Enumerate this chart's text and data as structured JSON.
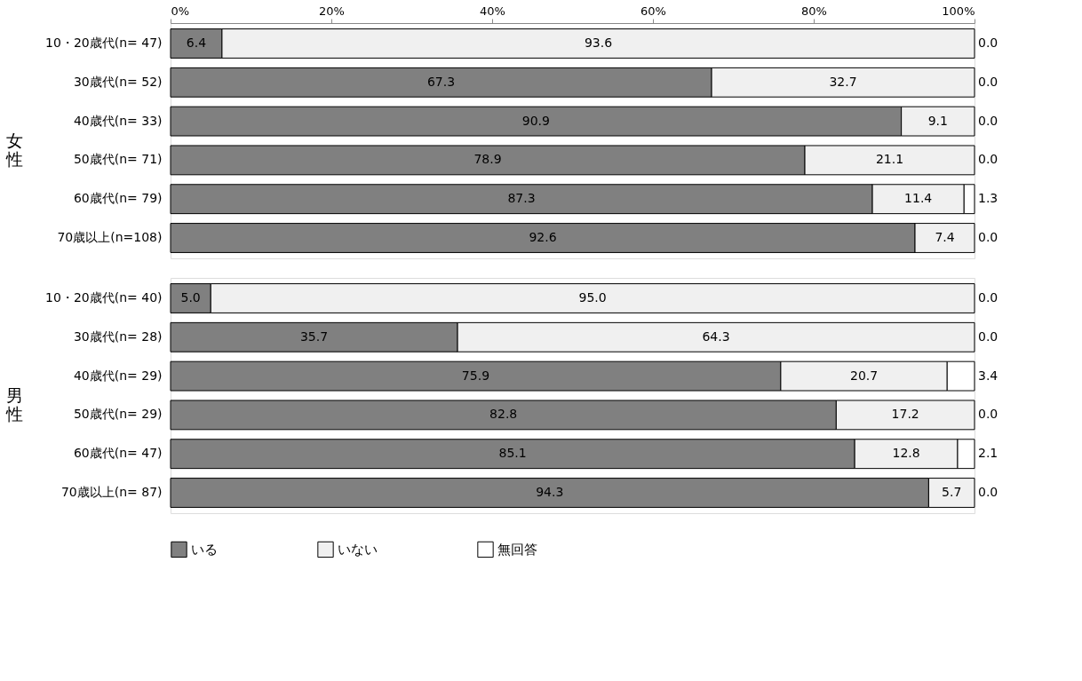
{
  "chart_data": [
    {
      "type": "bar",
      "orientation": "horizontal",
      "stacked": true,
      "ylabel": "女性",
      "categories": [
        "10・20歳代(n= 47)",
        "30歳代(n= 52)",
        "40歳代(n= 33)",
        "50歳代(n= 71)",
        "60歳代(n= 79)",
        "70歳以上(n=108)"
      ],
      "series": [
        {
          "name": "いる",
          "color": "#808080",
          "values": [
            6.4,
            67.3,
            90.9,
            78.9,
            87.3,
            92.6
          ],
          "value_labels": [
            "6.4",
            "67.3",
            "90.9",
            "78.9",
            "87.3",
            "92.6"
          ]
        },
        {
          "name": "いない",
          "color": "#f0f0f0",
          "values": [
            93.6,
            32.7,
            9.1,
            21.1,
            11.4,
            7.4
          ],
          "value_labels": [
            "93.6",
            "32.7",
            "9.1",
            "21.1",
            "11.4",
            "7.4"
          ]
        },
        {
          "name": "無回答",
          "color": "#ffffff",
          "values": [
            0.0,
            0.0,
            0.0,
            0.0,
            1.3,
            0.0
          ],
          "value_labels": [
            "0.0",
            "0.0",
            "0.0",
            "0.0",
            "1.3",
            "0.0"
          ]
        }
      ],
      "xlim": [
        0,
        100
      ],
      "xticks": [
        {
          "value": 0,
          "label": "0%"
        },
        {
          "value": 20,
          "label": "20%"
        },
        {
          "value": 40,
          "label": "40%"
        },
        {
          "value": 60,
          "label": "60%"
        },
        {
          "value": 80,
          "label": "80%"
        },
        {
          "value": 100,
          "label": "100%"
        }
      ],
      "grid": false,
      "legend": "bottom"
    },
    {
      "type": "bar",
      "orientation": "horizontal",
      "stacked": true,
      "ylabel": "男性",
      "categories": [
        "10・20歳代(n= 40)",
        "30歳代(n= 28)",
        "40歳代(n= 29)",
        "50歳代(n= 29)",
        "60歳代(n= 47)",
        "70歳以上(n= 87)"
      ],
      "series": [
        {
          "name": "いる",
          "color": "#808080",
          "values": [
            5.0,
            35.7,
            75.9,
            82.8,
            85.1,
            94.3
          ],
          "value_labels": [
            "5.0",
            "35.7",
            "75.9",
            "82.8",
            "85.1",
            "94.3"
          ]
        },
        {
          "name": "いない",
          "color": "#f0f0f0",
          "values": [
            95.0,
            64.3,
            20.7,
            17.2,
            12.8,
            5.7
          ],
          "value_labels": [
            "95.0",
            "64.3",
            "20.7",
            "17.2",
            "12.8",
            "5.7"
          ]
        },
        {
          "name": "無回答",
          "color": "#ffffff",
          "values": [
            0.0,
            0.0,
            3.4,
            0.0,
            2.1,
            0.0
          ],
          "value_labels": [
            "0.0",
            "0.0",
            "3.4",
            "0.0",
            "2.1",
            "0.0"
          ]
        }
      ],
      "xlim": [
        0,
        100
      ],
      "grid": false,
      "legend": "bottom",
      "tick_labels": "y"
    }
  ]
}
